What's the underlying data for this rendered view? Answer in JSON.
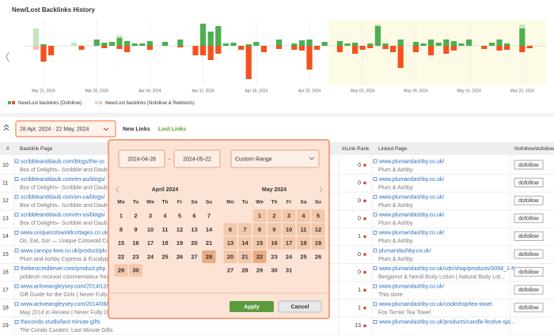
{
  "chart_data": {
    "type": "bar",
    "title": "New/Lost Backlinks History",
    "categories": [
      null,
      null,
      "Mar 21, 2024",
      null,
      null,
      null,
      null,
      null,
      null,
      "Mar 28, 2024",
      null,
      null,
      null,
      null,
      null,
      null,
      "Apr 04, 2024",
      null,
      null,
      null,
      null,
      null,
      null,
      "Apr 11, 2024",
      null,
      null,
      null,
      null,
      null,
      null,
      "Apr 18, 2024",
      null,
      null,
      null,
      null,
      null,
      null,
      "Apr 25, 2024",
      null,
      null,
      null,
      null,
      null,
      null,
      "May 02, 2024",
      null,
      null,
      null,
      null,
      null,
      null,
      "May 09, 2024",
      null,
      null,
      null,
      null,
      null,
      null,
      "May 16, 2024",
      null,
      null,
      null,
      null,
      null,
      null,
      "May 23, 2024",
      null,
      null,
      null
    ],
    "series": [
      {
        "name": "New/Lost backlinks (Dofollow)",
        "color": "#4caf50",
        "lost_color": "#f4511e",
        "values": [
          0,
          0,
          2,
          0,
          0,
          0,
          0,
          0,
          0,
          8,
          4,
          5,
          10,
          6,
          3,
          3,
          6,
          0,
          5,
          0,
          8,
          0,
          0,
          28,
          18,
          25,
          3,
          4,
          0,
          2,
          5,
          0,
          0,
          8,
          0,
          3,
          7,
          8,
          0,
          5,
          0,
          6,
          3,
          4,
          0,
          3,
          25,
          3,
          0,
          8,
          0,
          5,
          3,
          8,
          4,
          8,
          6,
          3,
          8,
          0,
          0,
          4,
          8,
          3,
          0,
          22,
          0,
          0,
          0
        ],
        "lost_values": [
          0,
          0,
          -20,
          -12,
          0,
          0,
          0,
          -5,
          0,
          0,
          -3,
          0,
          -4,
          -8,
          0,
          0,
          -5,
          0,
          0,
          0,
          -2,
          0,
          -12,
          -12,
          -18,
          -10,
          0,
          0,
          -5,
          -42,
          0,
          -8,
          0,
          -4,
          0,
          -5,
          -6,
          -30,
          -5,
          0,
          0,
          -8,
          0,
          -10,
          -5,
          -3,
          0,
          -4,
          -8,
          -28,
          0,
          -8,
          0,
          -12,
          0,
          -10,
          -6,
          0,
          0,
          0,
          -4,
          0,
          -6,
          -5,
          0,
          -8,
          -3,
          0,
          0
        ]
      },
      {
        "name": "New/Lost backlinks (Nofollow & Redirects)",
        "color": "#c5e5bd",
        "lost_color": "#f8c0b2",
        "values": [
          0,
          22,
          0,
          0,
          0,
          0,
          4,
          0,
          0,
          0,
          0,
          0,
          3,
          0,
          0,
          0,
          0,
          0,
          0,
          0,
          0,
          0,
          0,
          0,
          0,
          0,
          0,
          0,
          0,
          0,
          0,
          0,
          0,
          0,
          0,
          0,
          0,
          0,
          0,
          0,
          0,
          0,
          0,
          0,
          0,
          0,
          2,
          0,
          0,
          0,
          0,
          0,
          0,
          0,
          0,
          0,
          0,
          0,
          0,
          0,
          0,
          0,
          0,
          0,
          0,
          5,
          0,
          0,
          0
        ],
        "lost_values": [
          0,
          -5,
          0,
          0,
          0,
          0,
          0,
          0,
          0,
          0,
          0,
          0,
          0,
          0,
          0,
          0,
          0,
          0,
          0,
          0,
          0,
          0,
          0,
          0,
          0,
          0,
          0,
          0,
          0,
          0,
          0,
          0,
          0,
          0,
          0,
          0,
          0,
          0,
          0,
          0,
          0,
          0,
          0,
          0,
          0,
          0,
          0,
          0,
          0,
          0,
          0,
          0,
          0,
          0,
          0,
          0,
          0,
          0,
          0,
          0,
          0,
          0,
          0,
          0,
          0,
          0,
          0,
          0,
          0
        ]
      }
    ],
    "ylim": [
      -50,
      33
    ],
    "grid": false
  },
  "toolbar": {
    "date_range": "28 Apr, 2024 - 22 May, 2024",
    "tabs": [
      "New Links",
      "Lost Links"
    ]
  },
  "table": {
    "headers": [
      "#",
      "Backlink Page",
      "InLink Rank",
      "Linked Page",
      "Nofollow/dofollow"
    ],
    "rows": [
      {
        "num": 10,
        "url": "scribbleanddaub.com/blogs/the-sc",
        "title": "Box of Delights– Scribble and Daub",
        "rank": 0,
        "linked_url": "www.plumandashby.co.uk/",
        "linked_title": "Plum & Ashby",
        "follow": "dofollow"
      },
      {
        "num": 11,
        "url": "scribbleanddaub.com/en-au/blogs/",
        "title": "Box of Delights– Scribble and Daub",
        "rank": 0,
        "linked_url": "www.plumandashby.co.uk/",
        "linked_title": "Plum & Ashby",
        "follow": "dofollow"
      },
      {
        "num": 12,
        "url": "scribbleanddaub.com/en-ca/blogs/",
        "title": "Box of Delights– Scribble and Daub",
        "rank": 0,
        "linked_url": "www.plumandashby.co.uk/",
        "linked_title": "Plum & Ashby",
        "follow": "dofollow"
      },
      {
        "num": 13,
        "url": "scribbleanddaub.com/en-us/blogs/",
        "title": "Box of Delights– Scribble and Daub",
        "rank": 0,
        "linked_url": "www.plumandashby.co.uk/",
        "linked_title": "Plum & Ashby",
        "follow": "dofollow"
      },
      {
        "num": 14,
        "url": "www.uniquecotswoldcottages.co.uk/",
        "title": "Do, Eat, Go! — Unique Cotswold Cottages",
        "rank": 1,
        "linked_url": "www.plumandashby.co.uk/",
        "linked_title": "Plum & Ashby",
        "follow": "dofollow"
      },
      {
        "num": 15,
        "url": "www.canopy-kew.co.uk/product/plu",
        "title": "Plum and Ashby Cypress & Eucalyptu",
        "rank": 0,
        "linked_url": "plumandashby.co.uk/",
        "linked_title": "Plum & Ashby",
        "follow": "dofollow"
      },
      {
        "num": 16,
        "url": "thebestcreditever.com/product.php",
        "title": "poldevin recevoir commentateur fresh",
        "rank": 0,
        "linked_url": "www.plumandashby.co.uk/cdn/shop/products/0058_1-N...",
        "linked_title": "Bergamot & Neroli Body Lotion | Natural Body Lot...",
        "follow": "dofollow"
      },
      {
        "num": 17,
        "url": "www.activeangleysey.com/2014/12/",
        "title": "Gift Guide for the Girls | Never Fully D",
        "rank": 1,
        "linked_url": "www.plumandashby.co.uk/",
        "linked_title": "This store",
        "follow": "dofollow"
      },
      {
        "num": 18,
        "url": "www.activeangleysey.com/2014/06/",
        "title": "May 2014 in Review | Never Fully Dresse",
        "rank": 1,
        "linked_url": "www.plumandashby.co.uk/cookshop/tea-towel",
        "linked_title": "Fox Terrier Tea Towel",
        "follow": "dofollow"
      },
      {
        "num": 19,
        "url": "thecondo.studio/last-minute-gifts",
        "title": "The Condo Curates: Last Minute Gifts",
        "rank": 13,
        "linked_url": "www.plumandashby.co.uk/products/candle-festive-spi..."
      }
    ]
  },
  "datepicker": {
    "start": "2024-04-28",
    "separator": "-",
    "end": "2024-05-22",
    "preset": "Custom Range",
    "weekdays": [
      "Mo",
      "Tu",
      "We",
      "Th",
      "Fr",
      "Sa",
      "Su"
    ],
    "months": [
      {
        "title": "April 2024",
        "weeks": [
          [
            1,
            2,
            3,
            4,
            5,
            6,
            7
          ],
          [
            8,
            9,
            10,
            11,
            12,
            13,
            14
          ],
          [
            15,
            16,
            17,
            18,
            19,
            20,
            21
          ],
          [
            22,
            23,
            24,
            25,
            26,
            27,
            28
          ],
          [
            29,
            30
          ]
        ],
        "range_from": 28,
        "range_to": 30,
        "selected": 28
      },
      {
        "title": "May 2024",
        "weeks": [
          [
            null,
            null,
            1,
            2,
            3,
            4,
            5
          ],
          [
            6,
            7,
            8,
            9,
            10,
            11,
            12
          ],
          [
            13,
            14,
            15,
            16,
            17,
            18,
            19
          ],
          [
            20,
            21,
            22,
            23,
            24,
            25,
            26
          ],
          [
            27,
            28,
            29,
            30,
            31
          ]
        ],
        "range_from": 1,
        "range_to": 22,
        "selected": 22
      }
    ],
    "buttons": [
      "Apply",
      "Cancel"
    ]
  }
}
